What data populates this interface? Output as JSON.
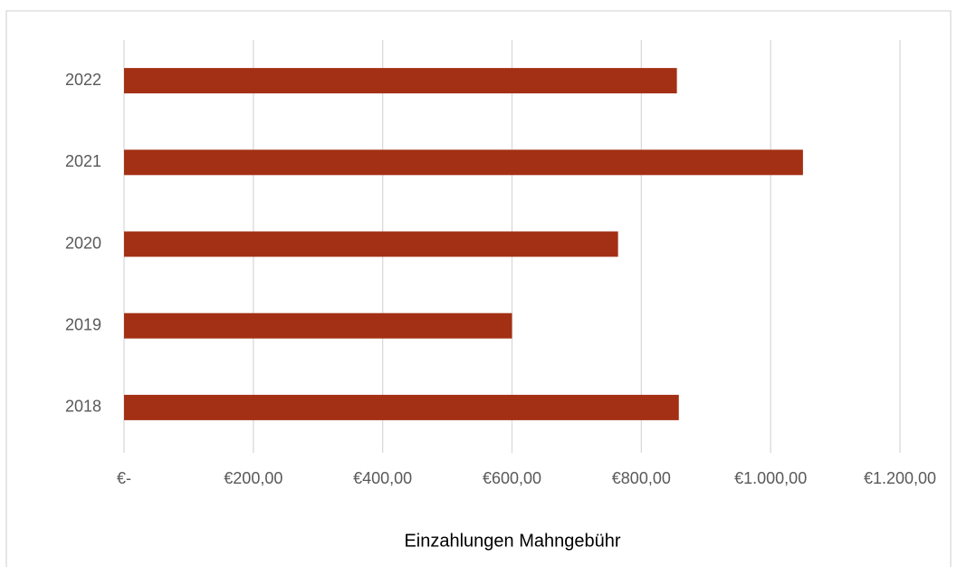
{
  "chart_data": {
    "type": "barh",
    "categories": [
      "2018",
      "2019",
      "2020",
      "2021",
      "2022"
    ],
    "values": [
      858,
      600,
      764,
      1050,
      855
    ],
    "color": "#a33014",
    "xlabel": "Einzahlungen Mahngebühr",
    "xlim": [
      0,
      1200
    ],
    "xticks": [
      {
        "value": 0,
        "label": "€-"
      },
      {
        "value": 200,
        "label": "€200,00"
      },
      {
        "value": 400,
        "label": "€400,00"
      },
      {
        "value": 600,
        "label": "€600,00"
      },
      {
        "value": 800,
        "label": "€800,00"
      },
      {
        "value": 1000,
        "label": "€1.000,00"
      },
      {
        "value": 1200,
        "label": "€1.200,00"
      }
    ],
    "grid": true
  }
}
